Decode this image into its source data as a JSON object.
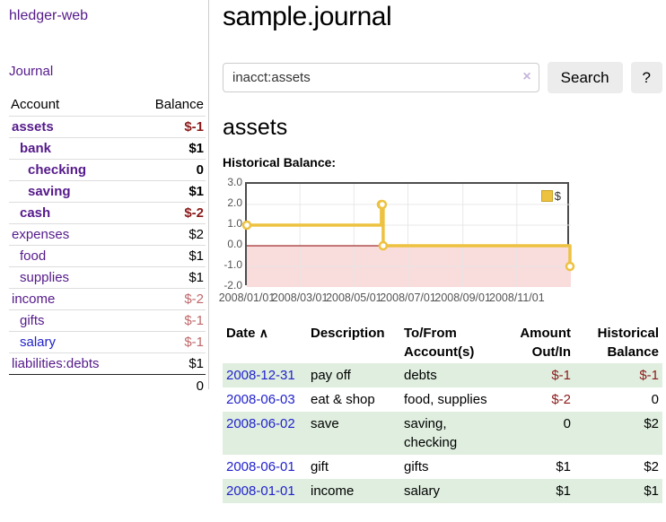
{
  "sidebar": {
    "app_title": "hledger-web",
    "journal_link": "Journal",
    "account_header": "Account",
    "balance_header": "Balance",
    "accounts": [
      {
        "name": "assets",
        "balance": "$-1"
      },
      {
        "name": "bank",
        "balance": "$1"
      },
      {
        "name": "checking",
        "balance": "0"
      },
      {
        "name": "saving",
        "balance": "$1"
      },
      {
        "name": "cash",
        "balance": "$-2"
      },
      {
        "name": "expenses",
        "balance": "$2"
      },
      {
        "name": "food",
        "balance": "$1"
      },
      {
        "name": "supplies",
        "balance": "$1"
      },
      {
        "name": "income",
        "balance": "$-2"
      },
      {
        "name": "gifts",
        "balance": "$-1"
      },
      {
        "name": "salary",
        "balance": "$-1"
      },
      {
        "name": "liabilities:debts",
        "balance": "$1"
      }
    ],
    "total": "0"
  },
  "main": {
    "title": "sample.journal",
    "search": {
      "value": "inacct:assets",
      "clear_icon": "×",
      "button": "Search",
      "help_button": "?"
    },
    "account_heading": "assets",
    "chart_label": "Historical Balance:"
  },
  "chart_data": {
    "type": "line",
    "title": "Historical Balance of assets",
    "step": true,
    "series": [
      {
        "name": "$",
        "color": "#edc240",
        "points": [
          [
            "2008-01-01",
            1
          ],
          [
            "2008-06-01",
            2
          ],
          [
            "2008-06-02",
            2
          ],
          [
            "2008-06-03",
            0
          ],
          [
            "2008-12-31",
            -1
          ]
        ]
      }
    ],
    "x_range": [
      "2008-01-01",
      "2009-01-01"
    ],
    "y_range": [
      -2,
      3
    ],
    "xticks": [
      "2008/01/01",
      "2008/03/01",
      "2008/05/01",
      "2008/07/01",
      "2008/09/01",
      "2008/11/01"
    ],
    "yticks": [
      "3.0",
      "2.0",
      "1.0",
      "0.0",
      "-1.0",
      "-2.0"
    ],
    "grid": true,
    "negative_region_color": "#f9dcdc",
    "zero_line_color": "#8b0000",
    "grid_color": "#e6e6e6",
    "border_color": "#4d4d4d",
    "legend": {
      "label": "$",
      "position": "top-right"
    }
  },
  "register": {
    "sort_icon": "∧",
    "headers": {
      "date": "Date",
      "description": "Description",
      "tofrom_line1": "To/From",
      "tofrom_line2": "Account(s)",
      "amount_line1": "Amount",
      "amount_line2": "Out/In",
      "balance_line1": "Historical",
      "balance_line2": "Balance"
    },
    "rows": [
      {
        "date": "2008-12-31",
        "description": "pay off",
        "accounts": "debts",
        "amount": "$-1",
        "balance": "$-1"
      },
      {
        "date": "2008-06-03",
        "description": "eat & shop",
        "accounts": "food, supplies",
        "amount": "$-2",
        "balance": "0"
      },
      {
        "date": "2008-06-02",
        "description": "save",
        "accounts": "saving, checking",
        "amount": "0",
        "balance": "$2"
      },
      {
        "date": "2008-06-01",
        "description": "gift",
        "accounts": "gifts",
        "amount": "$1",
        "balance": "$2"
      },
      {
        "date": "2008-01-01",
        "description": "income",
        "accounts": "salary",
        "amount": "$1",
        "balance": "$1"
      }
    ]
  }
}
